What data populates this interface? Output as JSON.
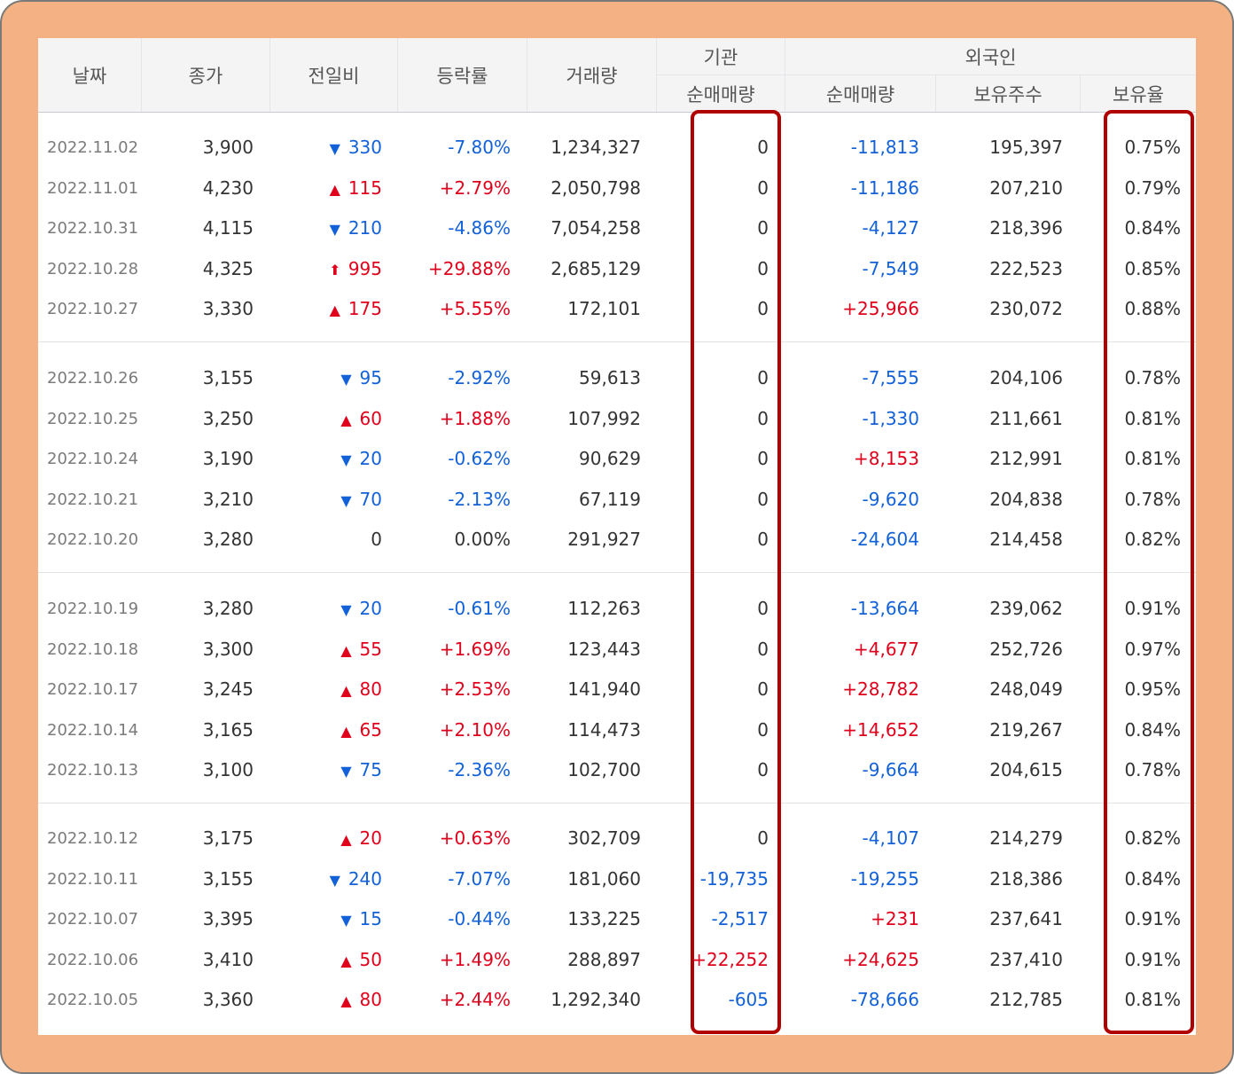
{
  "header": {
    "date": "날짜",
    "close": "종가",
    "change": "전일비",
    "rate": "등락률",
    "volume": "거래량",
    "institution": "기관",
    "institution_net": "순매매량",
    "foreign": "외국인",
    "foreign_net": "순매매량",
    "holdings": "보유주수",
    "holding_ratio": "보유율"
  },
  "colors": {
    "up": "#e0001b",
    "down": "#1261d8",
    "highlight_border": "#b00000",
    "frame_background": "#f4b183"
  },
  "rows": [
    {
      "date": "2022.11.02",
      "close": "3,900",
      "dir": "down",
      "arrow": "▼",
      "change": "330",
      "rate": "-7.80%",
      "volume": "1,234,327",
      "inst": "0",
      "inst_dir": "flat",
      "fnet": "-11,813",
      "fnet_dir": "down",
      "holdings": "195,397",
      "ratio": "0.75%"
    },
    {
      "date": "2022.11.01",
      "close": "4,230",
      "dir": "up",
      "arrow": "▲",
      "change": "115",
      "rate": "+2.79%",
      "volume": "2,050,798",
      "inst": "0",
      "inst_dir": "flat",
      "fnet": "-11,186",
      "fnet_dir": "down",
      "holdings": "207,210",
      "ratio": "0.79%"
    },
    {
      "date": "2022.10.31",
      "close": "4,115",
      "dir": "down",
      "arrow": "▼",
      "change": "210",
      "rate": "-4.86%",
      "volume": "7,054,258",
      "inst": "0",
      "inst_dir": "flat",
      "fnet": "-4,127",
      "fnet_dir": "down",
      "holdings": "218,396",
      "ratio": "0.84%"
    },
    {
      "date": "2022.10.28",
      "close": "4,325",
      "dir": "up",
      "arrow": "⬆",
      "change": "995",
      "rate": "+29.88%",
      "volume": "2,685,129",
      "inst": "0",
      "inst_dir": "flat",
      "fnet": "-7,549",
      "fnet_dir": "down",
      "holdings": "222,523",
      "ratio": "0.85%"
    },
    {
      "date": "2022.10.27",
      "close": "3,330",
      "dir": "up",
      "arrow": "▲",
      "change": "175",
      "rate": "+5.55%",
      "volume": "172,101",
      "inst": "0",
      "inst_dir": "flat",
      "fnet": "+25,966",
      "fnet_dir": "up",
      "holdings": "230,072",
      "ratio": "0.88%"
    },
    {
      "date": "2022.10.26",
      "close": "3,155",
      "dir": "down",
      "arrow": "▼",
      "change": "95",
      "rate": "-2.92%",
      "volume": "59,613",
      "inst": "0",
      "inst_dir": "flat",
      "fnet": "-7,555",
      "fnet_dir": "down",
      "holdings": "204,106",
      "ratio": "0.78%"
    },
    {
      "date": "2022.10.25",
      "close": "3,250",
      "dir": "up",
      "arrow": "▲",
      "change": "60",
      "rate": "+1.88%",
      "volume": "107,992",
      "inst": "0",
      "inst_dir": "flat",
      "fnet": "-1,330",
      "fnet_dir": "down",
      "holdings": "211,661",
      "ratio": "0.81%"
    },
    {
      "date": "2022.10.24",
      "close": "3,190",
      "dir": "down",
      "arrow": "▼",
      "change": "20",
      "rate": "-0.62%",
      "volume": "90,629",
      "inst": "0",
      "inst_dir": "flat",
      "fnet": "+8,153",
      "fnet_dir": "up",
      "holdings": "212,991",
      "ratio": "0.81%"
    },
    {
      "date": "2022.10.21",
      "close": "3,210",
      "dir": "down",
      "arrow": "▼",
      "change": "70",
      "rate": "-2.13%",
      "volume": "67,119",
      "inst": "0",
      "inst_dir": "flat",
      "fnet": "-9,620",
      "fnet_dir": "down",
      "holdings": "204,838",
      "ratio": "0.78%"
    },
    {
      "date": "2022.10.20",
      "close": "3,280",
      "dir": "flat",
      "arrow": "",
      "change": "0",
      "rate": "0.00%",
      "volume": "291,927",
      "inst": "0",
      "inst_dir": "flat",
      "fnet": "-24,604",
      "fnet_dir": "down",
      "holdings": "214,458",
      "ratio": "0.82%"
    },
    {
      "date": "2022.10.19",
      "close": "3,280",
      "dir": "down",
      "arrow": "▼",
      "change": "20",
      "rate": "-0.61%",
      "volume": "112,263",
      "inst": "0",
      "inst_dir": "flat",
      "fnet": "-13,664",
      "fnet_dir": "down",
      "holdings": "239,062",
      "ratio": "0.91%"
    },
    {
      "date": "2022.10.18",
      "close": "3,300",
      "dir": "up",
      "arrow": "▲",
      "change": "55",
      "rate": "+1.69%",
      "volume": "123,443",
      "inst": "0",
      "inst_dir": "flat",
      "fnet": "+4,677",
      "fnet_dir": "up",
      "holdings": "252,726",
      "ratio": "0.97%"
    },
    {
      "date": "2022.10.17",
      "close": "3,245",
      "dir": "up",
      "arrow": "▲",
      "change": "80",
      "rate": "+2.53%",
      "volume": "141,940",
      "inst": "0",
      "inst_dir": "flat",
      "fnet": "+28,782",
      "fnet_dir": "up",
      "holdings": "248,049",
      "ratio": "0.95%"
    },
    {
      "date": "2022.10.14",
      "close": "3,165",
      "dir": "up",
      "arrow": "▲",
      "change": "65",
      "rate": "+2.10%",
      "volume": "114,473",
      "inst": "0",
      "inst_dir": "flat",
      "fnet": "+14,652",
      "fnet_dir": "up",
      "holdings": "219,267",
      "ratio": "0.84%"
    },
    {
      "date": "2022.10.13",
      "close": "3,100",
      "dir": "down",
      "arrow": "▼",
      "change": "75",
      "rate": "-2.36%",
      "volume": "102,700",
      "inst": "0",
      "inst_dir": "flat",
      "fnet": "-9,664",
      "fnet_dir": "down",
      "holdings": "204,615",
      "ratio": "0.78%"
    },
    {
      "date": "2022.10.12",
      "close": "3,175",
      "dir": "up",
      "arrow": "▲",
      "change": "20",
      "rate": "+0.63%",
      "volume": "302,709",
      "inst": "0",
      "inst_dir": "flat",
      "fnet": "-4,107",
      "fnet_dir": "down",
      "holdings": "214,279",
      "ratio": "0.82%"
    },
    {
      "date": "2022.10.11",
      "close": "3,155",
      "dir": "down",
      "arrow": "▼",
      "change": "240",
      "rate": "-7.07%",
      "volume": "181,060",
      "inst": "-19,735",
      "inst_dir": "down",
      "fnet": "-19,255",
      "fnet_dir": "down",
      "holdings": "218,386",
      "ratio": "0.84%"
    },
    {
      "date": "2022.10.07",
      "close": "3,395",
      "dir": "down",
      "arrow": "▼",
      "change": "15",
      "rate": "-0.44%",
      "volume": "133,225",
      "inst": "-2,517",
      "inst_dir": "down",
      "fnet": "+231",
      "fnet_dir": "up",
      "holdings": "237,641",
      "ratio": "0.91%"
    },
    {
      "date": "2022.10.06",
      "close": "3,410",
      "dir": "up",
      "arrow": "▲",
      "change": "50",
      "rate": "+1.49%",
      "volume": "288,897",
      "inst": "+22,252",
      "inst_dir": "up",
      "fnet": "+24,625",
      "fnet_dir": "up",
      "holdings": "237,410",
      "ratio": "0.91%"
    },
    {
      "date": "2022.10.05",
      "close": "3,360",
      "dir": "up",
      "arrow": "▲",
      "change": "80",
      "rate": "+2.44%",
      "volume": "1,292,340",
      "inst": "-605",
      "inst_dir": "down",
      "fnet": "-78,666",
      "fnet_dir": "down",
      "holdings": "212,785",
      "ratio": "0.81%"
    }
  ]
}
